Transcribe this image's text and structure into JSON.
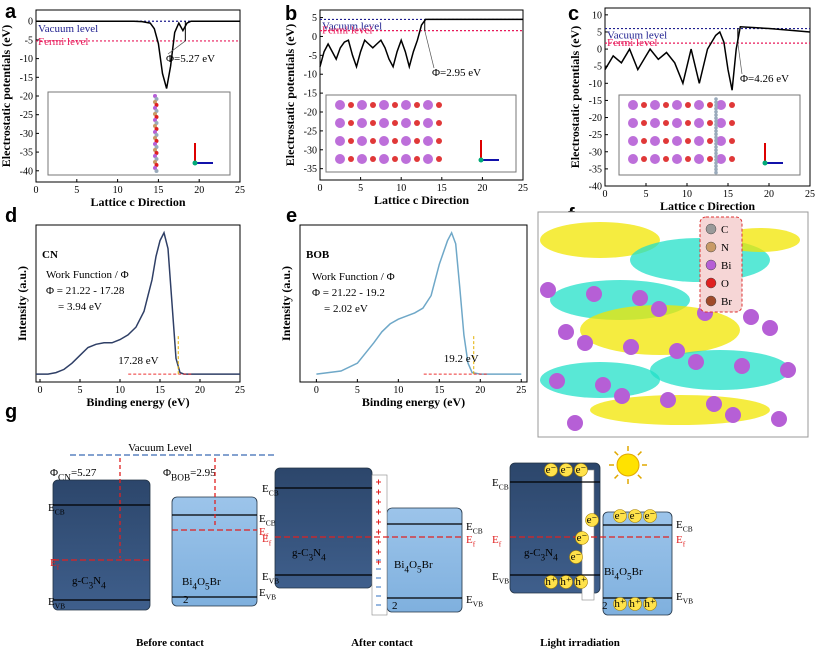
{
  "chart_data": [
    {
      "type": "line",
      "panel_label": "a",
      "xlabel": "Lattice c Direction",
      "ylabel": "Electrostatic potentials (eV)",
      "xlim": [
        0,
        25
      ],
      "xticks": [
        0,
        5,
        10,
        15,
        20,
        25
      ],
      "ylim": [
        -43,
        3
      ],
      "yticks": [
        0,
        -5,
        -10,
        -15,
        -20,
        -25,
        -30,
        -35,
        -40
      ],
      "x": [
        0,
        2,
        4,
        6,
        8,
        10,
        12,
        13,
        14,
        14.5,
        15,
        15.5,
        16,
        16.5,
        17,
        17.5,
        18,
        18.5,
        19,
        20,
        22,
        25
      ],
      "values": [
        0,
        0,
        0,
        0,
        0,
        0,
        0,
        -0.1,
        -0.5,
        -2,
        -6,
        -14,
        -18,
        -12,
        -3,
        -0.5,
        -2.5,
        -0.5,
        0,
        0,
        0,
        0
      ],
      "color": "#000000",
      "hlines": [
        {
          "name": "Vacuum level",
          "value": 0,
          "color": "#1f1f8f"
        },
        {
          "name": "Fermi level",
          "value": -5.27,
          "color": "#e8195a"
        }
      ],
      "annotation": "Φ=5.27 eV"
    },
    {
      "type": "line",
      "panel_label": "b",
      "xlabel": "Lattice c Direction",
      "ylabel": "Electrostatic potentials (eV)",
      "xlim": [
        0,
        25
      ],
      "xticks": [
        0,
        5,
        10,
        15,
        20,
        25
      ],
      "ylim": [
        -38,
        7
      ],
      "yticks": [
        5,
        0,
        -5,
        -10,
        -15,
        -20,
        -25,
        -30,
        -35
      ],
      "x": [
        0,
        0.5,
        1,
        1.5,
        2,
        2.5,
        3,
        3.5,
        4,
        4.5,
        5,
        5.5,
        6,
        6.5,
        7,
        7.5,
        8,
        8.5,
        9,
        9.5,
        10,
        10.5,
        11,
        11.5,
        12,
        12.5,
        13,
        14,
        16,
        18,
        20,
        22,
        25
      ],
      "values": [
        -8,
        -4,
        -2,
        -4,
        -6,
        -3,
        -1.5,
        -1,
        -5,
        -8,
        -4,
        -1,
        -2,
        -3,
        -2,
        -1,
        -3,
        -6,
        -8,
        -4,
        -1,
        -4,
        -8,
        -4,
        -1,
        3,
        4.5,
        4.5,
        4.5,
        4.5,
        4.5,
        4.5,
        4.5
      ],
      "color": "#000000",
      "hlines": [
        {
          "name": "Vacuum level",
          "value": 4.5,
          "color": "#1f1f8f"
        },
        {
          "name": "Fermi level",
          "value": 1.55,
          "color": "#e8195a"
        }
      ],
      "annotation": "Φ=2.95 eV"
    },
    {
      "type": "line",
      "panel_label": "c",
      "xlabel": "Lattice c Direction",
      "ylabel": "Electrostatic potentials (eV)",
      "xlim": [
        0,
        25
      ],
      "xticks": [
        0,
        5,
        10,
        15,
        20,
        25
      ],
      "ylim": [
        -40,
        12
      ],
      "yticks": [
        10,
        5,
        0,
        -5,
        -10,
        -15,
        -20,
        -25,
        -30,
        -35,
        -40
      ],
      "x": [
        0,
        1,
        2,
        3,
        4,
        5,
        5.5,
        6.5,
        7.5,
        8.5,
        9.5,
        10.5,
        11.5,
        12.5,
        13.5,
        14,
        14.5,
        15,
        15.5,
        16,
        16.5,
        18,
        20,
        22,
        25
      ],
      "values": [
        -6,
        -2,
        -4,
        0,
        -6,
        -2,
        0,
        -3,
        -1,
        -4,
        -10,
        0,
        -10,
        0,
        4,
        5,
        2,
        -6,
        -12,
        0,
        6.5,
        6.3,
        6,
        5.6,
        5
      ],
      "color": "#000000",
      "hlines": [
        {
          "name": "Vacuum level",
          "value": 6,
          "color": "#1f1f8f"
        },
        {
          "name": "Fermi level",
          "value": 1.74,
          "color": "#e8195a"
        }
      ],
      "annotation": "Φ=4.26 eV"
    },
    {
      "type": "line",
      "panel_label": "d",
      "title": "CN",
      "xlabel": "Binding energy (eV)",
      "ylabel": "Intensity (a.u.)",
      "xlim": [
        -0.5,
        25
      ],
      "xticks": [
        0,
        5,
        10,
        15,
        20,
        25
      ],
      "ylim": [
        0,
        1
      ],
      "x": [
        -0.5,
        1,
        2,
        3,
        4,
        5,
        6,
        7,
        8,
        9,
        10,
        11,
        12,
        13,
        13.5,
        14,
        14.5,
        15,
        15.5,
        16,
        16.5,
        17,
        17.5,
        18,
        20,
        22,
        25
      ],
      "values": [
        0.05,
        0.05,
        0.06,
        0.08,
        0.12,
        0.17,
        0.22,
        0.24,
        0.25,
        0.25,
        0.27,
        0.3,
        0.35,
        0.45,
        0.55,
        0.65,
        0.8,
        0.9,
        0.95,
        0.85,
        0.5,
        0.15,
        0.06,
        0.05,
        0.05,
        0.05,
        0.05
      ],
      "color": "#2f3f66",
      "notes": [
        "Work Function / Φ",
        "Φ = 21.22 - 17.28",
        "= 3.94 eV"
      ],
      "cutoff": {
        "value": 17.28,
        "label": "17.28 eV"
      }
    },
    {
      "type": "line",
      "panel_label": "e",
      "title": "BOB",
      "xlabel": "Binding energy (eV)",
      "ylabel": "Intensity (a.u.)",
      "xlim": [
        -2,
        25.7
      ],
      "xticks": [
        0,
        5,
        10,
        15,
        20,
        25
      ],
      "ylim": [
        0,
        1
      ],
      "x": [
        0,
        3,
        5,
        7,
        8,
        9,
        10,
        11,
        12,
        13,
        14,
        15,
        16,
        16.5,
        17,
        17.5,
        18,
        18.5,
        19,
        20,
        22,
        25
      ],
      "values": [
        0.05,
        0.07,
        0.12,
        0.25,
        0.32,
        0.37,
        0.4,
        0.42,
        0.44,
        0.47,
        0.55,
        0.75,
        0.9,
        0.95,
        0.88,
        0.6,
        0.3,
        0.12,
        0.06,
        0.05,
        0.05,
        0.05
      ],
      "color": "#6fa8c8",
      "notes": [
        "Work Function / Φ",
        "Φ = 21.22 - 19.2",
        "= 2.02 eV"
      ],
      "cutoff": {
        "value": 19.2,
        "label": "19.2 eV"
      }
    }
  ],
  "panel_f": {
    "label": "f",
    "legend": [
      "C",
      "N",
      "Bi",
      "O",
      "Br"
    ],
    "legend_colors": [
      "#9a9a9a",
      "#c89a66",
      "#b65fd6",
      "#e02020",
      "#a04a2a"
    ]
  },
  "diagram": {
    "label": "g",
    "vacuum_level": "Vacuum Level",
    "phi_cn": [
      "Φ",
      "CN",
      "=5.27"
    ],
    "phi_bob": [
      "Φ",
      "BOB",
      "=2.95"
    ],
    "e_cb": [
      "E",
      "CB"
    ],
    "e_f": [
      "E",
      "f"
    ],
    "e_vb": [
      "E",
      "VB"
    ],
    "g_c3n4": [
      "g-C",
      "3",
      "N",
      "4"
    ],
    "bi4o5br": [
      "Bi",
      "4",
      "O",
      "5",
      "Br"
    ],
    "stray": "2",
    "electron": "e⁻",
    "hole": "h⁺",
    "captions": [
      "Before contact",
      "After contact",
      "Light irradiation"
    ]
  }
}
